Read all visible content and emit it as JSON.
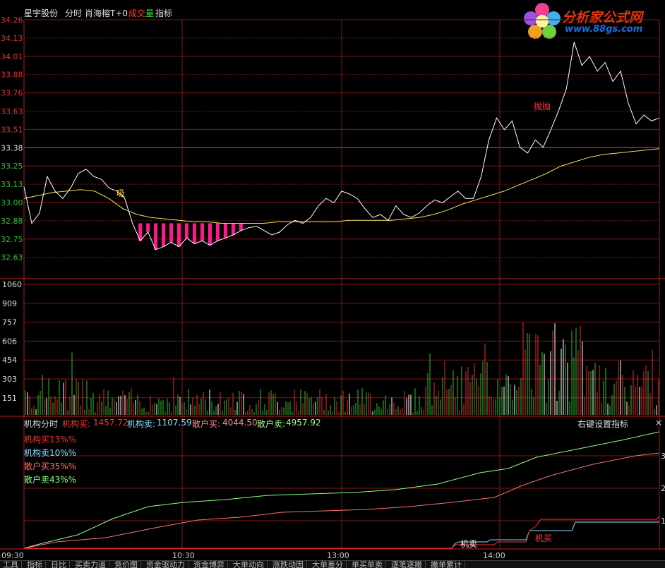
{
  "header": {
    "stock_name": "星宇股份",
    "mode": "分时",
    "indicator_name": "肖海榕T+0",
    "vol_label_a": "成交",
    "vol_label_b": "量",
    "tab": "指标"
  },
  "logo": {
    "title": "分析家公式网",
    "url": "www.88gs.com"
  },
  "price_panel": {
    "y_labels": [
      "34.26",
      "34.13",
      "34.01",
      "33.88",
      "33.76",
      "33.63",
      "33.51",
      "33.38",
      "33.25",
      "33.13",
      "33.00",
      "32.88",
      "32.75",
      "32.63"
    ],
    "prev_close": "33.38",
    "annotations": [
      {
        "text": "吸",
        "color": "#ffd040"
      },
      {
        "text": "抛抛",
        "color": "#ff4040"
      }
    ]
  },
  "volume_panel": {
    "y_labels": [
      "1060",
      "909",
      "757",
      "606",
      "454",
      "303",
      "151"
    ]
  },
  "indicator_panel": {
    "title": "机构分时",
    "values": [
      {
        "label": "机构买:",
        "value": "1457.72",
        "color": "#ff3030"
      },
      {
        "label": "机构卖:",
        "value": "1107.59",
        "color": "#80e0ff"
      },
      {
        "label": "散户买:",
        "value": "4044.50",
        "color": "#ff9090"
      },
      {
        "label": "散户卖:",
        "value": "4957.92",
        "color": "#a0ff90"
      }
    ],
    "right_menu": "右键设置指标",
    "legend": [
      {
        "text": "机构买13%%",
        "color": "#ff3030"
      },
      {
        "text": "机构卖10%%",
        "color": "#80e0ff"
      },
      {
        "text": "散户买35%%",
        "color": "#ff7070"
      },
      {
        "text": "散户卖43%%",
        "color": "#90ff80"
      }
    ],
    "annotations": [
      {
        "text": "机卖",
        "color": "#ffffff"
      },
      {
        "text": "机买",
        "color": "#ff4040"
      }
    ],
    "right_labels": [
      "3",
      "2",
      "1"
    ]
  },
  "x_axis": {
    "labels": [
      "09:30",
      "10:30",
      "13:00",
      "14:00"
    ]
  },
  "bottom_tabs": [
    "工具",
    "指标",
    "日比",
    "买卖力道",
    "竞价图",
    "资金驱动力",
    "资金博弈",
    "大单动向",
    "涨跌动因",
    "大单差分",
    "单买单卖",
    "逐笔逐撇",
    "撇单累计"
  ],
  "chart_data": {
    "type": "line",
    "title": "",
    "ylim": [
      32.57,
      34.32
    ],
    "price": [
      33.13,
      32.88,
      32.95,
      33.2,
      33.1,
      33.05,
      33.12,
      33.22,
      33.25,
      33.2,
      33.18,
      33.12,
      33.1,
      33.05,
      32.88,
      32.76,
      32.82,
      32.7,
      32.72,
      32.75,
      32.72,
      32.78,
      32.74,
      32.76,
      32.73,
      32.76,
      32.78,
      32.8,
      32.83,
      32.85,
      32.86,
      32.83,
      32.8,
      32.82,
      32.87,
      32.9,
      32.88,
      32.92,
      33.0,
      33.05,
      33.02,
      33.1,
      33.08,
      33.05,
      32.98,
      32.92,
      32.94,
      32.9,
      33.0,
      32.94,
      32.92,
      32.95,
      33.0,
      33.04,
      33.02,
      33.06,
      33.1,
      33.05,
      33.05,
      33.2,
      33.45,
      33.6,
      33.52,
      33.58,
      33.4,
      33.36,
      33.45,
      33.4,
      33.52,
      33.65,
      33.8,
      34.12,
      33.96,
      34.02,
      33.92,
      33.98,
      33.85,
      33.92,
      33.7,
      33.56,
      33.62,
      33.58,
      33.6
    ],
    "avg": [
      33.05,
      33.07,
      33.09,
      33.1,
      33.11,
      33.1,
      33.05,
      32.98,
      32.94,
      32.92,
      32.91,
      32.9,
      32.89,
      32.89,
      32.88,
      32.88,
      32.88,
      32.88,
      32.89,
      32.89,
      32.89,
      32.89,
      32.89,
      32.9,
      32.9,
      32.9,
      32.9,
      32.91,
      32.92,
      32.94,
      32.97,
      33.01,
      33.04,
      33.07,
      33.1,
      33.14,
      33.18,
      33.22,
      33.27,
      33.3,
      33.33,
      33.35,
      33.36,
      33.37,
      33.38,
      33.39
    ],
    "volume_max": 1060
  }
}
